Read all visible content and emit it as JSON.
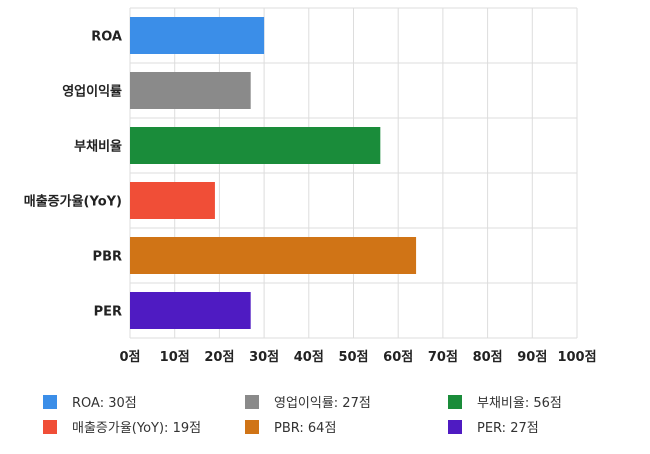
{
  "chart_data": {
    "type": "bar",
    "orientation": "horizontal",
    "categories": [
      "ROA",
      "영업이익률",
      "부채비율",
      "매출증가율(YoY)",
      "PBR",
      "PER"
    ],
    "values": [
      30,
      27,
      56,
      19,
      64,
      27
    ],
    "colors": [
      "#3b8ee8",
      "#8a8a8a",
      "#1a8c3a",
      "#f04e37",
      "#d07416",
      "#4f1bc2"
    ],
    "xlim": [
      0,
      100
    ],
    "xticks": [
      0,
      10,
      20,
      30,
      40,
      50,
      60,
      70,
      80,
      90,
      100
    ],
    "tick_labels": [
      "0점",
      "10점",
      "20점",
      "30점",
      "40점",
      "50점",
      "60점",
      "70점",
      "80점",
      "90점",
      "100점"
    ],
    "grid": true,
    "legend_position": "bottom",
    "legend": [
      "ROA: 30점",
      "영업이익률: 27점",
      "부채비율: 56점",
      "매출증가율(YoY): 19점",
      "PBR: 64점",
      "PER: 27점"
    ]
  }
}
